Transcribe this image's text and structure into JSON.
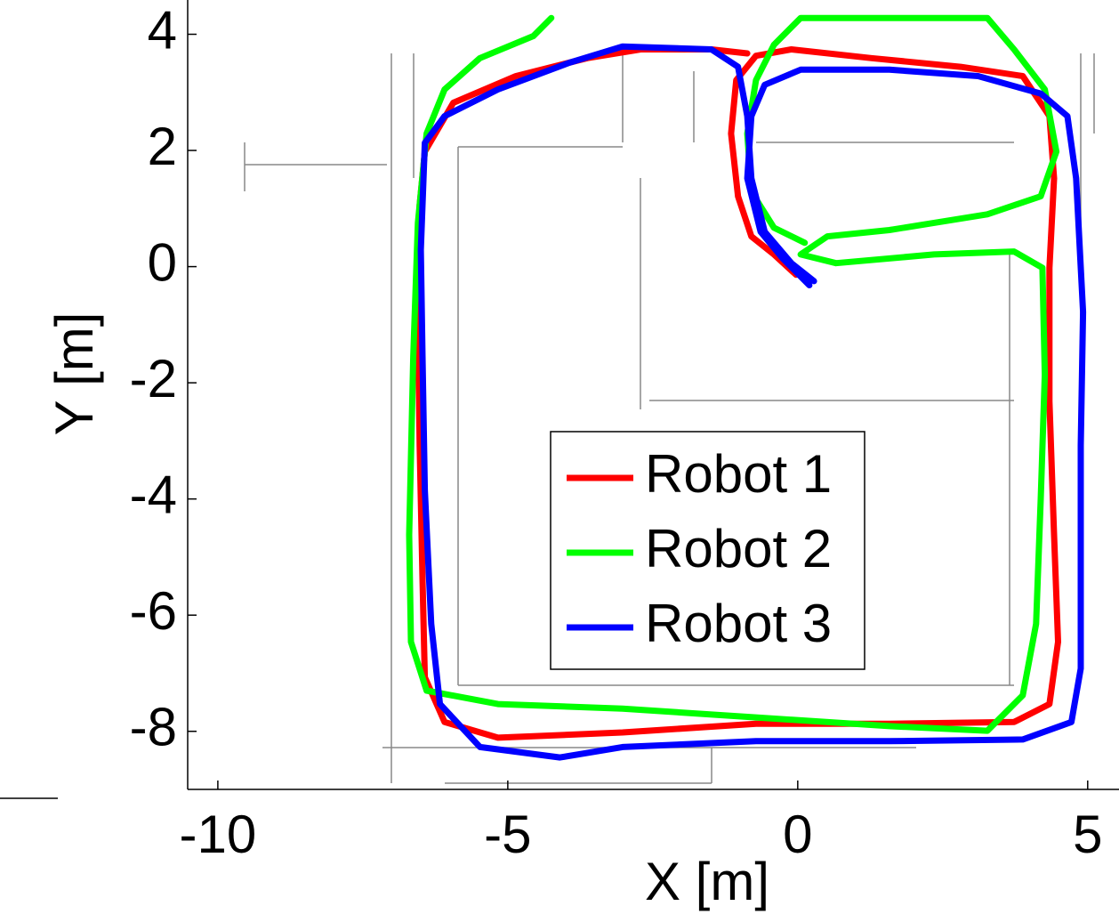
{
  "chart_data": {
    "type": "line",
    "xlabel": "X [m]",
    "ylabel": "Y [m]",
    "xlim": [
      -10.52,
      5.54
    ],
    "ylim": [
      -9,
      4.59
    ],
    "xticks": [
      -10,
      -5,
      0,
      5
    ],
    "yticks": [
      -8,
      -6,
      -4,
      -2,
      0,
      2,
      4
    ],
    "legend": "lower center",
    "series": [
      {
        "name": "Robot 1",
        "color": "#ff0000",
        "x": [
          -0.03,
          -0.41,
          -0.8,
          -1.03,
          -1.15,
          -1.06,
          -0.72,
          -0.11,
          1.27,
          2.81,
          3.88,
          4.34,
          4.42,
          4.34,
          4.34,
          4.42,
          4.49,
          4.34,
          3.73,
          1.58,
          -0.72,
          -3.02,
          -5.17,
          -6.09,
          -6.43,
          -6.47,
          -6.52,
          -6.55,
          -6.52,
          -6.43,
          -5.94,
          -4.86,
          -3.63,
          -2.71,
          -1.49,
          -0.87
        ],
        "values": [
          -0.14,
          0.21,
          0.52,
          1.21,
          2.29,
          3.21,
          3.63,
          3.74,
          3.59,
          3.44,
          3.28,
          2.59,
          1.52,
          -0.02,
          -2.32,
          -4.62,
          -6.46,
          -7.53,
          -7.84,
          -7.87,
          -7.87,
          -8.02,
          -8.11,
          -7.84,
          -7.07,
          -5.38,
          -3.08,
          -0.78,
          1.06,
          1.98,
          2.82,
          3.28,
          3.59,
          3.74,
          3.74,
          3.67
        ]
      },
      {
        "name": "Robot 2",
        "color": "#00ff00",
        "x": [
          0.12,
          -0.41,
          -0.8,
          -0.87,
          -0.72,
          -0.41,
          0.05,
          3.27,
          3.73,
          4.26,
          4.46,
          4.19,
          3.27,
          1.58,
          0.51,
          0.05,
          0.66,
          2.35,
          3.73,
          4.22,
          4.26,
          4.19,
          4.11,
          3.88,
          3.27,
          1.58,
          -0.72,
          -3.02,
          -5.17,
          -6.4,
          -6.67,
          -6.7,
          -6.63,
          -6.55,
          -6.4,
          -6.09,
          -5.48,
          -4.56,
          -4.25
        ],
        "values": [
          0.41,
          0.67,
          1.29,
          2.29,
          3.21,
          3.82,
          4.28,
          4.28,
          3.74,
          3.05,
          1.98,
          1.21,
          0.9,
          0.63,
          0.52,
          0.21,
          0.06,
          0.21,
          0.26,
          -0.02,
          -1.86,
          -4.0,
          -6.15,
          -7.38,
          -7.99,
          -7.91,
          -7.76,
          -7.61,
          -7.53,
          -7.3,
          -6.46,
          -4.62,
          -1.55,
          0.75,
          2.29,
          3.05,
          3.59,
          3.97,
          4.28
        ]
      },
      {
        "name": "Robot 3",
        "color": "#0000ff",
        "x": [
          0.2,
          -0.26,
          -0.64,
          -0.87,
          -0.8,
          -0.57,
          0.05,
          1.58,
          3.11,
          4.19,
          4.65,
          4.8,
          4.92,
          4.88,
          4.88,
          4.88,
          4.72,
          3.88,
          1.58,
          -0.72,
          -3.02,
          -4.1,
          -5.48,
          -6.17,
          -6.32,
          -6.43,
          -6.47,
          -6.5,
          -6.43,
          -6.09,
          -5.17,
          -3.94,
          -3.02,
          -1.49,
          -1.03,
          -0.87,
          -0.8,
          -0.57,
          -0.11,
          0.28
        ],
        "values": [
          -0.32,
          0.14,
          0.6,
          1.52,
          2.59,
          3.13,
          3.39,
          3.39,
          3.28,
          2.98,
          2.59,
          1.52,
          -0.78,
          -3.08,
          -5.38,
          -6.92,
          -7.84,
          -8.14,
          -8.17,
          -8.17,
          -8.27,
          -8.45,
          -8.27,
          -7.53,
          -6.15,
          -3.85,
          -1.55,
          0.29,
          2.13,
          2.59,
          3.05,
          3.51,
          3.79,
          3.74,
          3.44,
          2.59,
          1.52,
          0.6,
          0.06,
          -0.25
        ]
      }
    ]
  }
}
